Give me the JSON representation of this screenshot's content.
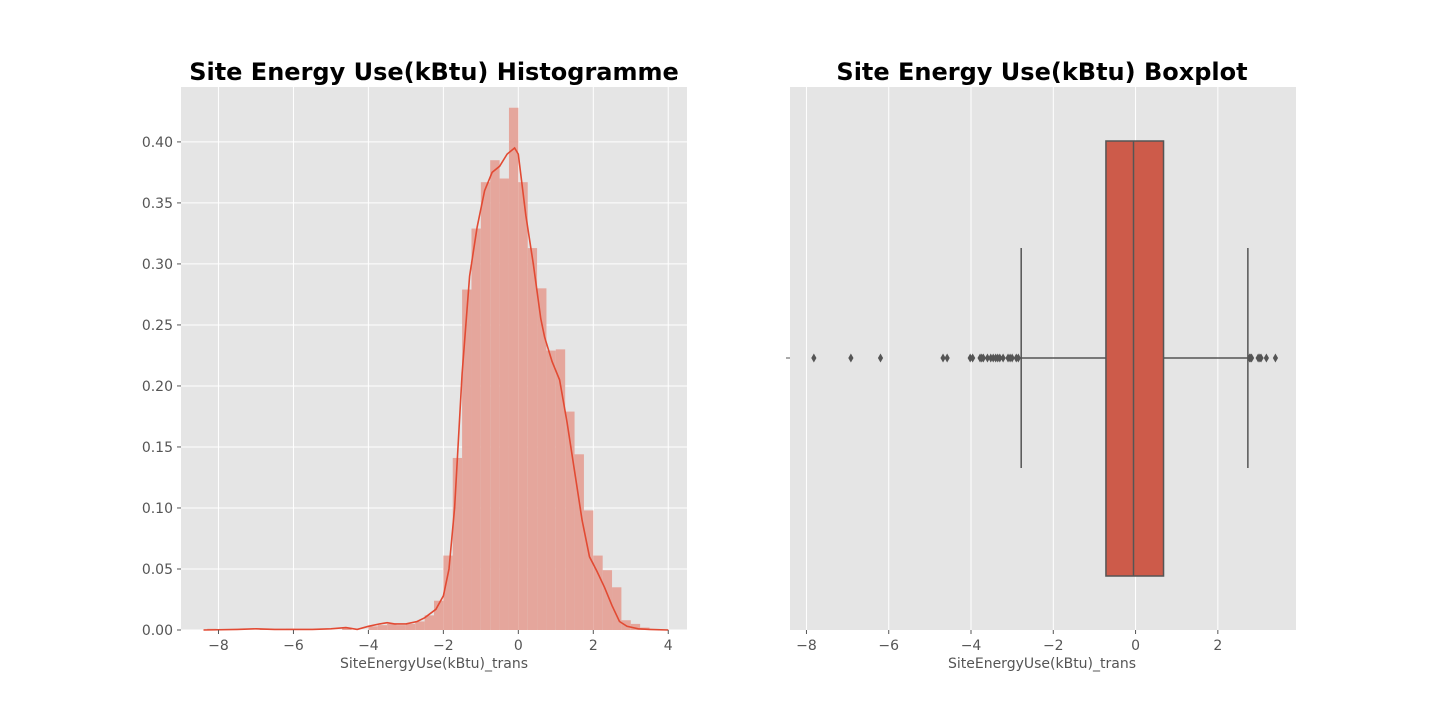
{
  "chart_data": [
    {
      "type": "bar",
      "subtype": "histogram_with_kde",
      "title": "Site Energy Use(kBtu) Histogramme",
      "xlabel": "SiteEnergyUse(kBtu)_trans",
      "ylabel": "",
      "xlim": [
        -9.0,
        4.5
      ],
      "ylim": [
        0,
        0.445
      ],
      "xticks": [
        -8,
        -6,
        -4,
        -2,
        0,
        2,
        4
      ],
      "xtick_labels": [
        "−8",
        "−6",
        "−4",
        "−2",
        "0",
        "2",
        "4"
      ],
      "yticks": [
        0.0,
        0.05,
        0.1,
        0.15,
        0.2,
        0.25,
        0.3,
        0.35,
        0.4
      ],
      "ytick_labels": [
        "0.00",
        "0.05",
        "0.10",
        "0.15",
        "0.20",
        "0.25",
        "0.30",
        "0.35",
        "0.40"
      ],
      "grid": true,
      "bar_color": "#e5a69c",
      "line_color": "#e24a33",
      "bins": [
        {
          "x0": -8.3,
          "x1": -8.05,
          "value": 0.001
        },
        {
          "x0": -6.9,
          "x1": -6.65,
          "value": 0.001
        },
        {
          "x0": -6.2,
          "x1": -5.95,
          "value": 0.001
        },
        {
          "x0": -4.7,
          "x1": -4.45,
          "value": 0.002
        },
        {
          "x0": -4.0,
          "x1": -3.75,
          "value": 0.003
        },
        {
          "x0": -3.75,
          "x1": -3.5,
          "value": 0.004
        },
        {
          "x0": -3.5,
          "x1": -3.25,
          "value": 0.005
        },
        {
          "x0": -3.25,
          "x1": -3.0,
          "value": 0.004
        },
        {
          "x0": -3.0,
          "x1": -2.75,
          "value": 0.005
        },
        {
          "x0": -2.75,
          "x1": -2.5,
          "value": 0.007
        },
        {
          "x0": -2.5,
          "x1": -2.25,
          "value": 0.012
        },
        {
          "x0": -2.25,
          "x1": -2.0,
          "value": 0.024
        },
        {
          "x0": -2.0,
          "x1": -1.75,
          "value": 0.061
        },
        {
          "x0": -1.75,
          "x1": -1.5,
          "value": 0.141
        },
        {
          "x0": -1.5,
          "x1": -1.25,
          "value": 0.279
        },
        {
          "x0": -1.25,
          "x1": -1.0,
          "value": 0.329
        },
        {
          "x0": -1.0,
          "x1": -0.75,
          "value": 0.367
        },
        {
          "x0": -0.75,
          "x1": -0.5,
          "value": 0.385
        },
        {
          "x0": -0.5,
          "x1": -0.25,
          "value": 0.37
        },
        {
          "x0": -0.25,
          "x1": 0.0,
          "value": 0.428
        },
        {
          "x0": 0.0,
          "x1": 0.25,
          "value": 0.367
        },
        {
          "x0": 0.25,
          "x1": 0.5,
          "value": 0.313
        },
        {
          "x0": 0.5,
          "x1": 0.75,
          "value": 0.28
        },
        {
          "x0": 0.75,
          "x1": 1.0,
          "value": 0.229
        },
        {
          "x0": 1.0,
          "x1": 1.25,
          "value": 0.23
        },
        {
          "x0": 1.25,
          "x1": 1.5,
          "value": 0.179
        },
        {
          "x0": 1.5,
          "x1": 1.75,
          "value": 0.144
        },
        {
          "x0": 1.75,
          "x1": 2.0,
          "value": 0.098
        },
        {
          "x0": 2.0,
          "x1": 2.25,
          "value": 0.061
        },
        {
          "x0": 2.25,
          "x1": 2.5,
          "value": 0.049
        },
        {
          "x0": 2.5,
          "x1": 2.75,
          "value": 0.035
        },
        {
          "x0": 2.75,
          "x1": 3.0,
          "value": 0.008
        },
        {
          "x0": 3.0,
          "x1": 3.25,
          "value": 0.005
        },
        {
          "x0": 3.25,
          "x1": 3.5,
          "value": 0.002
        }
      ],
      "kde": {
        "x": [
          -8.4,
          -7.5,
          -7.0,
          -6.5,
          -6.0,
          -5.5,
          -5.0,
          -4.6,
          -4.3,
          -4.0,
          -3.7,
          -3.5,
          -3.3,
          -3.0,
          -2.7,
          -2.5,
          -2.2,
          -2.0,
          -1.85,
          -1.7,
          -1.5,
          -1.3,
          -1.1,
          -0.9,
          -0.7,
          -0.5,
          -0.3,
          -0.1,
          0.0,
          0.2,
          0.4,
          0.6,
          0.7,
          0.9,
          1.1,
          1.3,
          1.5,
          1.7,
          1.9,
          2.1,
          2.3,
          2.5,
          2.7,
          2.9,
          3.2,
          3.5,
          4.0
        ],
        "y": [
          0.0,
          0.0005,
          0.001,
          0.0005,
          0.0005,
          0.0005,
          0.001,
          0.002,
          0.0005,
          0.003,
          0.005,
          0.006,
          0.005,
          0.005,
          0.007,
          0.01,
          0.017,
          0.028,
          0.05,
          0.1,
          0.21,
          0.29,
          0.33,
          0.36,
          0.375,
          0.38,
          0.39,
          0.395,
          0.39,
          0.34,
          0.3,
          0.255,
          0.24,
          0.22,
          0.205,
          0.17,
          0.13,
          0.09,
          0.06,
          0.048,
          0.035,
          0.02,
          0.007,
          0.003,
          0.001,
          0.0005,
          0.0
        ]
      }
    },
    {
      "type": "boxplot",
      "title": "Site Energy Use(kBtu) Boxplot",
      "xlabel": "SiteEnergyUse(kBtu)_trans",
      "ylabel": "",
      "xlim": [
        -8.4,
        3.9
      ],
      "xticks": [
        -8,
        -6,
        -4,
        -2,
        0,
        2
      ],
      "xtick_labels": [
        "−8",
        "−6",
        "−4",
        "−2",
        "0",
        "2"
      ],
      "grid": true,
      "box_color": "#cd5b4a",
      "line_color": "#555555",
      "q1": -0.72,
      "median": -0.05,
      "q3": 0.68,
      "whisker_low": -2.78,
      "whisker_high": 2.73,
      "outliers": [
        -7.82,
        -6.92,
        -6.2,
        -4.68,
        -4.58,
        -4.02,
        -3.96,
        -3.78,
        -3.74,
        -3.7,
        -3.6,
        -3.52,
        -3.46,
        -3.4,
        -3.35,
        -3.3,
        -3.22,
        -3.1,
        -3.05,
        -3.0,
        -2.9,
        -2.85,
        2.77,
        2.8,
        2.82,
        2.98,
        3.02,
        3.05,
        3.18,
        3.4
      ]
    }
  ]
}
